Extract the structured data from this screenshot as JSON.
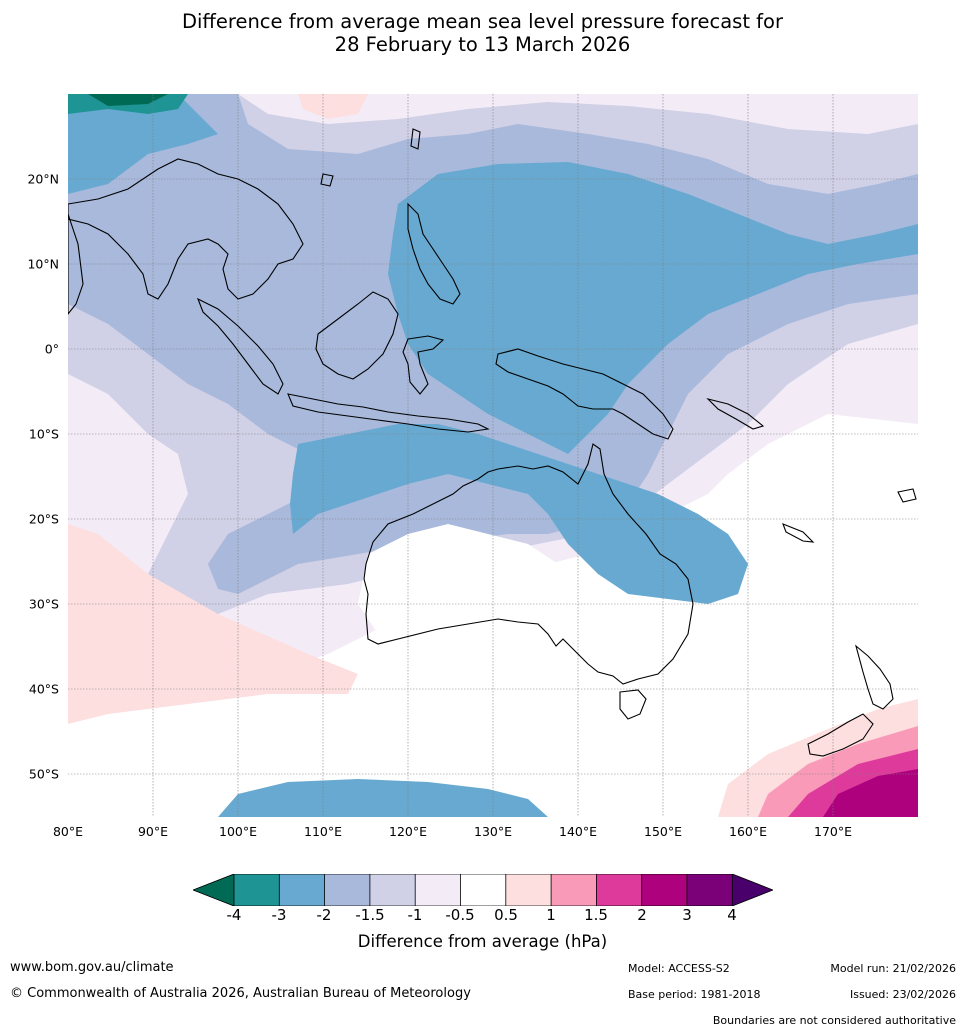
{
  "title": {
    "line1": "Difference from average mean sea level pressure forecast for",
    "line2": "28 February to 13 March 2026"
  },
  "map": {
    "latitude_labels": [
      "20°N",
      "10°N",
      "0°",
      "10°S",
      "20°S",
      "30°S",
      "40°S",
      "50°S"
    ],
    "longitude_labels": [
      "80°E",
      "90°E",
      "100°E",
      "110°E",
      "120°E",
      "130°E",
      "140°E",
      "150°E",
      "160°E",
      "170°E"
    ],
    "colors": {
      "lt_m4": "#006a55",
      "m4_m3": "#1f9494",
      "m3_m2": "#67a9d0",
      "m2_m15": "#a8b9dc",
      "m15_m1": "#d0d0e6",
      "m1_m05": "#f3ebf6",
      "m05_05": "#ffffff",
      "p05_1": "#fddfe0",
      "p1_15": "#f89ab8",
      "p15_2": "#de3a9c",
      "p2_3": "#ae017e",
      "p3_4": "#7a0177",
      "gt_4": "#49006a",
      "coast": "#000000",
      "border": "#808080",
      "grid": "#808080"
    }
  },
  "colorbar": {
    "ticks": [
      "-4",
      "-3",
      "-2",
      "-1.5",
      "-1",
      "-0.5",
      "0.5",
      "1",
      "1.5",
      "2",
      "3",
      "4"
    ],
    "title": "Difference from average (hPa)"
  },
  "footer": {
    "website": "www.bom.gov.au/climate",
    "copyright": "© Commonwealth of Australia 2026, Australian Bureau of Meteorology",
    "model": "Model: ACCESS-S2",
    "base_period": "Base period: 1981-2018",
    "model_run": "Model run: 21/02/2026",
    "issued": "Issued: 23/02/2026",
    "disclaimer": "Boundaries are not considered authoritative"
  }
}
